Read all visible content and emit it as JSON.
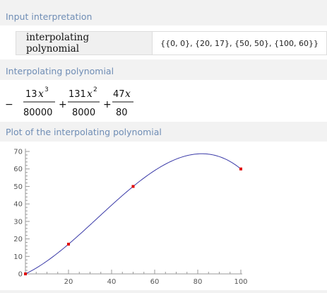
{
  "pods": {
    "input": {
      "title": "Input interpretation",
      "label": "interpolating polynomial",
      "value": "{{0, 0}, {20, 17}, {50, 50}, {100, 60}}"
    },
    "result": {
      "title": "Interpolating polynomial",
      "terms": [
        {
          "sign": "−",
          "coef": "13",
          "var": "x",
          "exp": "3",
          "den": "80000"
        },
        {
          "sign": "+",
          "coef": "131",
          "var": "x",
          "exp": "2",
          "den": "8000"
        },
        {
          "sign": "+",
          "coef": "47",
          "var": "x",
          "exp": "",
          "den": "80"
        }
      ]
    },
    "plot": {
      "title": "Plot of the interpolating polynomial"
    }
  },
  "chart_data": {
    "type": "line",
    "title": "",
    "xlabel": "",
    "ylabel": "",
    "xlim": [
      0,
      100
    ],
    "ylim": [
      0,
      70
    ],
    "x_ticks": [
      20,
      40,
      60,
      80,
      100
    ],
    "y_ticks": [
      0,
      10,
      20,
      30,
      40,
      50,
      60,
      70
    ],
    "grid": false,
    "series": [
      {
        "function": "-(13/80000)x^3 + (131/8000)x^2 + (47/80)x",
        "color": "#3a3aa8"
      }
    ],
    "points": [
      {
        "x": 0,
        "y": 0
      },
      {
        "x": 20,
        "y": 17
      },
      {
        "x": 50,
        "y": 50
      },
      {
        "x": 100,
        "y": 60
      }
    ],
    "point_color": "#e00000"
  }
}
